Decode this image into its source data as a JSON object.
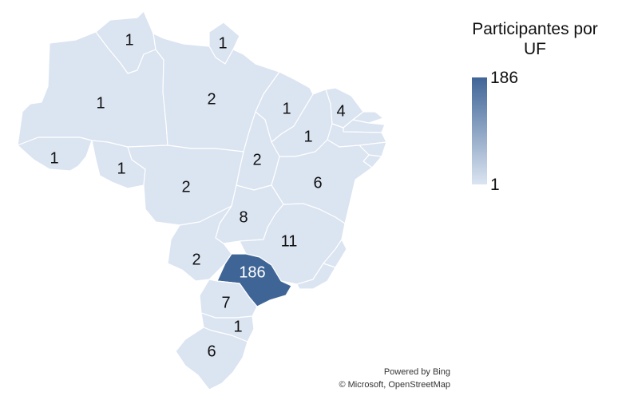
{
  "legend": {
    "title": "Participantes por UF",
    "max_label": "186",
    "min_label": "1",
    "color_max": "#3f6597",
    "color_min": "#dbe4f1"
  },
  "attribution": {
    "powered": "Powered by Bing",
    "copyright": "© Microsoft, OpenStreetMap"
  },
  "states": [
    {
      "id": "RR",
      "value": "1"
    },
    {
      "id": "AP",
      "value": "1"
    },
    {
      "id": "AM",
      "value": "1"
    },
    {
      "id": "PA",
      "value": "2"
    },
    {
      "id": "MA",
      "value": "1"
    },
    {
      "id": "CE",
      "value": "4"
    },
    {
      "id": "PI",
      "value": "1"
    },
    {
      "id": "AC",
      "value": "1"
    },
    {
      "id": "RO",
      "value": "1"
    },
    {
      "id": "TO",
      "value": "2"
    },
    {
      "id": "MT",
      "value": "2"
    },
    {
      "id": "BA",
      "value": "6"
    },
    {
      "id": "GO",
      "value": "8"
    },
    {
      "id": "MG",
      "value": "11"
    },
    {
      "id": "MS",
      "value": "2"
    },
    {
      "id": "SP",
      "value": "186"
    },
    {
      "id": "PR",
      "value": "7"
    },
    {
      "id": "SC",
      "value": "1"
    },
    {
      "id": "RS",
      "value": "6"
    }
  ]
}
